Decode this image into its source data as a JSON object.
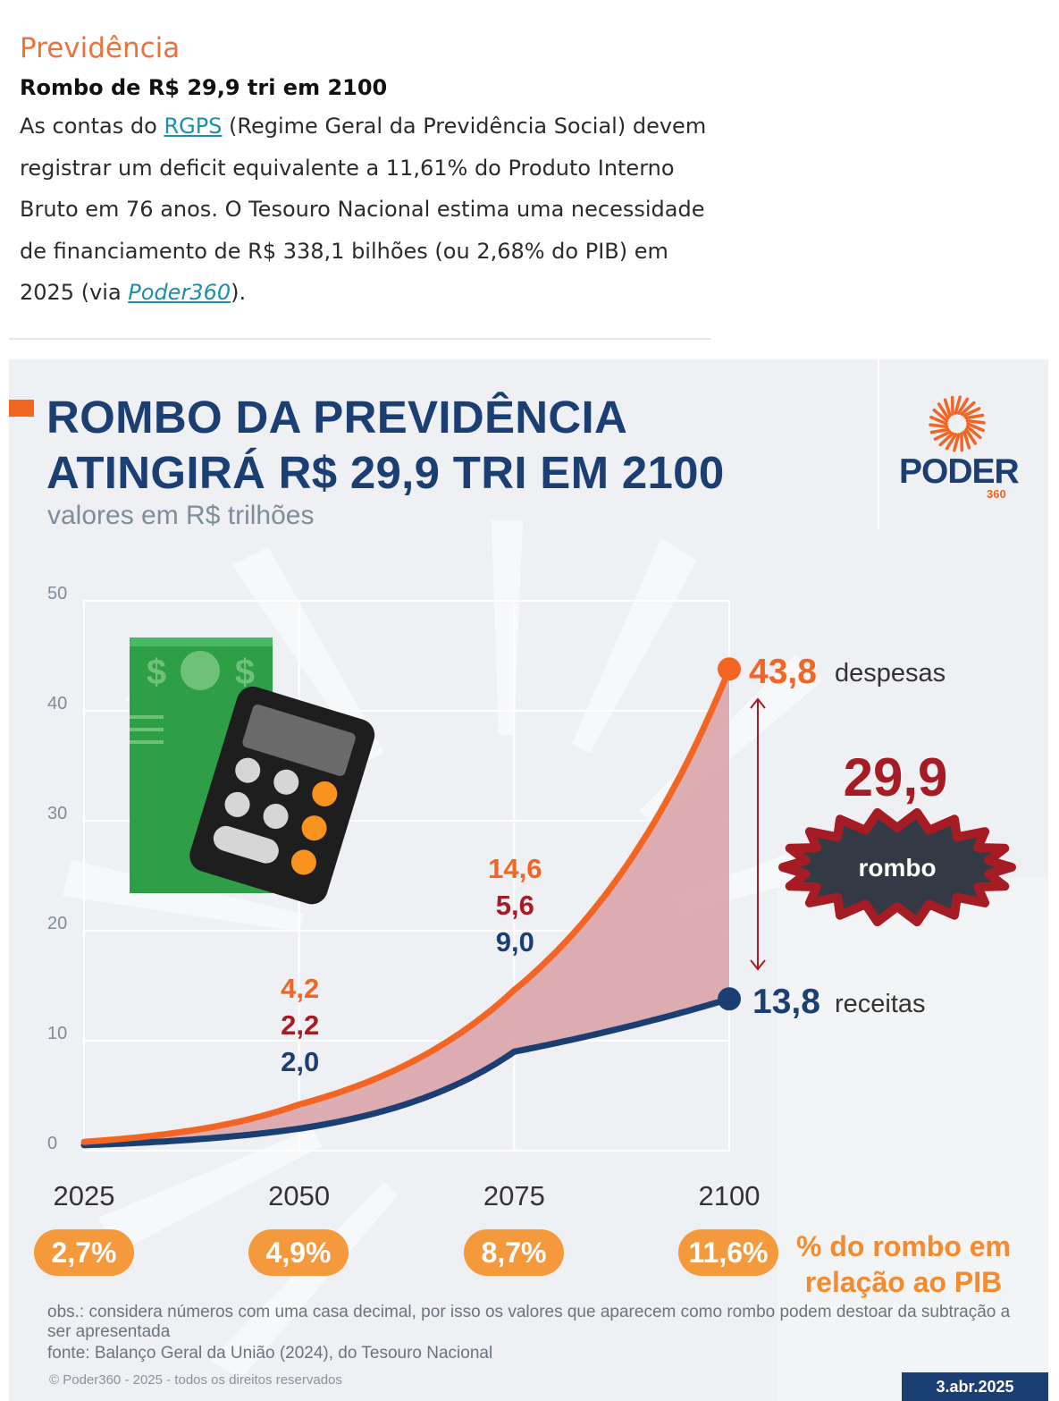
{
  "article": {
    "section": "Previdência",
    "headline": "Rombo de R$ 29,9 tri em 2100",
    "p_before_link": "As contas do ",
    "link_rgps": "RGPS",
    "p_after_link": " (Regime Geral da Previdência Social) devem registrar um deficit equivalente a 11,61% do Produto Interno Bruto em 76 anos. O Tesouro Nacional estima uma necessidade de financiamento de R$ 338,1 bilhões (ou 2,68% do PIB) em 2025 (via ",
    "link_poder": "Poder360",
    "p_end": ")."
  },
  "infographic": {
    "title_line1": "ROMBO DA PREVIDÊNCIA",
    "title_line2": "ATINGIRÁ R$ 29,9 TRI EM 2100",
    "subtitle": "valores em R$ trilhões",
    "logo_text": "PODER",
    "logo_sub": "360",
    "rombo_value": "29,9",
    "rombo_label": "rombo",
    "despesas_value": "43,8",
    "despesas_label": "despesas",
    "receitas_value": "13,8",
    "receitas_label": "receitas",
    "pct_label": "% do rombo em relação ao PIB",
    "obs": "obs.: considera números com uma casa decimal, por isso os valores que aparecem como rombo podem destoar da subtração a ser apresentada",
    "fonte": "fonte: Balanço Geral da União (2024), do Tesouro Nacional",
    "copyright": "© Poder360 - 2025 - todos os direitos reservados",
    "date": "3.abr.2025",
    "colors": {
      "despesas": "#f26522",
      "receitas": "#1b3e73",
      "rombo": "#a51c24",
      "area": "#d9a4a8",
      "pill": "#f59a3c"
    }
  },
  "chart_data": {
    "type": "area",
    "x": [
      2025,
      2050,
      2075,
      2100
    ],
    "x_ticks": [
      "2025",
      "2050",
      "2075",
      "2100"
    ],
    "y_ticks": [
      "0",
      "10",
      "20",
      "30",
      "40",
      "50"
    ],
    "ylim": [
      0,
      50
    ],
    "grid": true,
    "series": [
      {
        "name": "despesas",
        "values": [
          0.8,
          4.2,
          14.6,
          43.8
        ],
        "color": "#f26522"
      },
      {
        "name": "receitas",
        "values": [
          0.5,
          2.0,
          9.0,
          13.8
        ],
        "color": "#1b3e73"
      },
      {
        "name": "rombo",
        "values": [
          null,
          2.2,
          5.6,
          29.9
        ],
        "color": "#a51c24"
      }
    ],
    "annotations": [
      {
        "x": 2050,
        "labels": [
          "4,2",
          "2,2",
          "2,0"
        ]
      },
      {
        "x": 2075,
        "labels": [
          "14,6",
          "5,6",
          "9,0"
        ]
      }
    ],
    "pct_pib": [
      "2,7%",
      "4,9%",
      "8,7%",
      "11,6%"
    ]
  }
}
